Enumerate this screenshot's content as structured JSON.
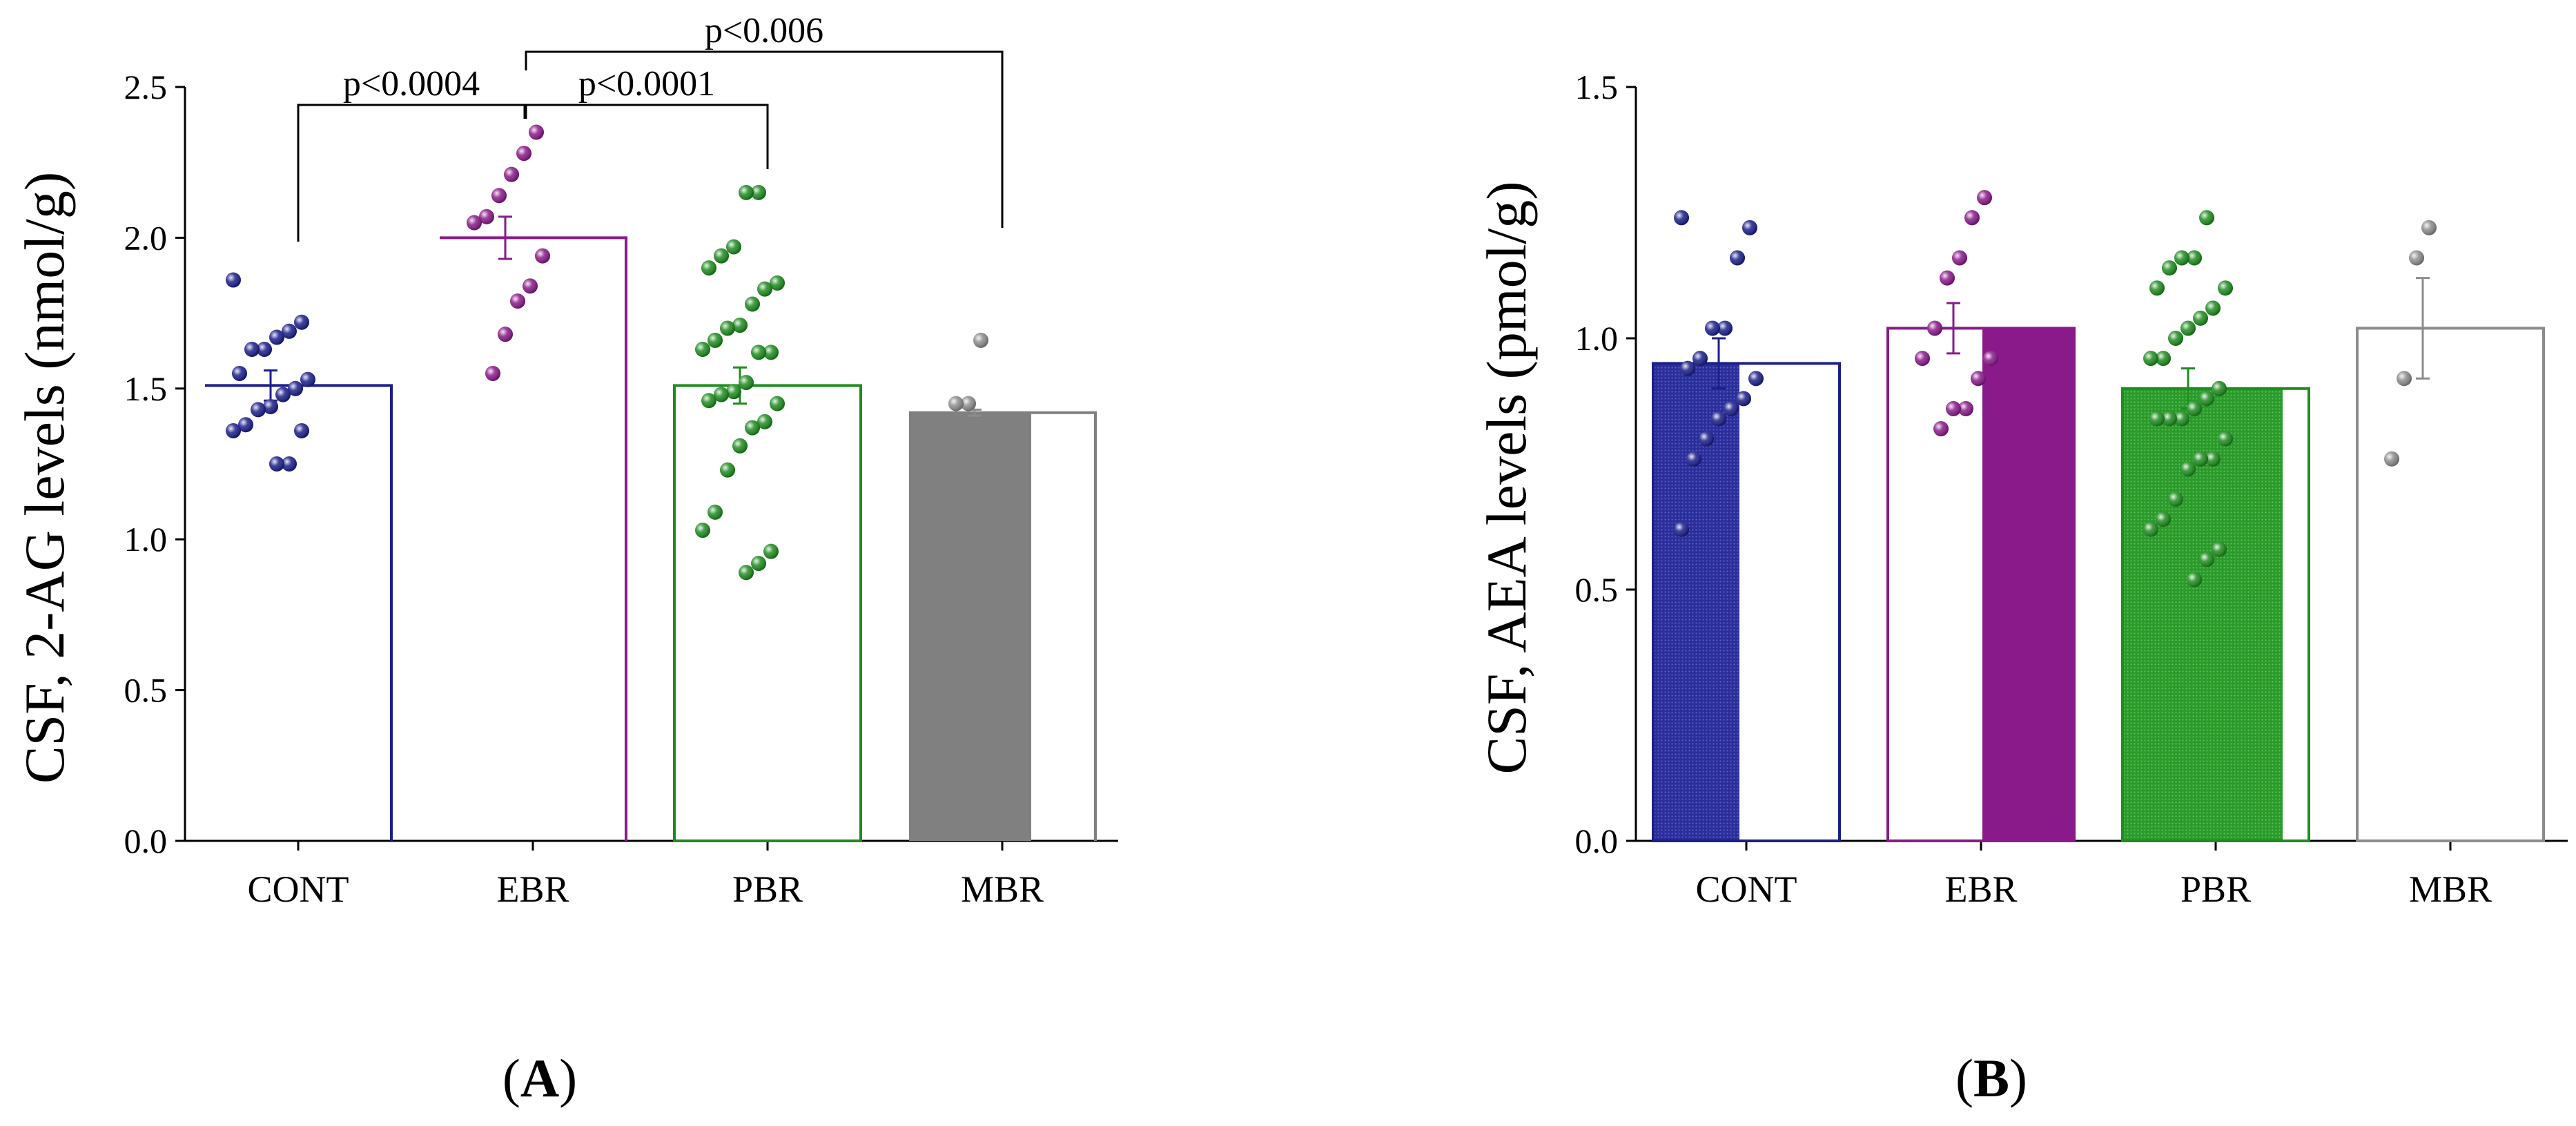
{
  "chart_data": [
    {
      "type": "bar",
      "panel_label": "A",
      "ylabel": "CSF, 2-AG levels (nmol/g)",
      "xlabel": "",
      "ylim": [
        0,
        2.5
      ],
      "yticks": [
        0.0,
        0.5,
        1.0,
        1.5,
        2.0,
        2.5
      ],
      "ytick_labels": [
        "0.0",
        "0.5",
        "1.0",
        "1.5",
        "2.0",
        "2.5"
      ],
      "categories": [
        "CONT",
        "EBR",
        "PBR",
        "MBR"
      ],
      "colors": [
        "#1b1f8a",
        "#8a1a8a",
        "#1e8c1e",
        "#8c8c8c"
      ],
      "values": [
        1.51,
        2.0,
        1.51,
        1.42
      ],
      "errors": [
        0.05,
        0.07,
        0.06,
        0.01
      ],
      "points": [
        [
          1.86,
          1.72,
          1.69,
          1.67,
          1.63,
          1.63,
          1.55,
          1.53,
          1.5,
          1.48,
          1.44,
          1.43,
          1.38,
          1.36,
          1.36,
          1.25,
          1.25
        ],
        [
          2.35,
          2.28,
          2.21,
          2.14,
          2.07,
          2.05,
          1.94,
          1.84,
          1.79,
          1.68,
          1.55
        ],
        [
          2.15,
          2.15,
          1.97,
          1.94,
          1.9,
          1.85,
          1.83,
          1.78,
          1.71,
          1.7,
          1.66,
          1.63,
          1.62,
          1.62,
          1.52,
          1.49,
          1.48,
          1.46,
          1.45,
          1.39,
          1.37,
          1.31,
          1.23,
          1.09,
          1.03,
          0.96,
          0.92,
          0.89
        ],
        [
          1.66,
          1.45,
          1.45
        ]
      ],
      "significance": [
        {
          "from": "CONT",
          "to": "EBR",
          "label": "p<0.0004"
        },
        {
          "from": "EBR",
          "to": "PBR",
          "label": "p<0.0001"
        },
        {
          "from": "EBR",
          "to": "MBR",
          "label": "p<0.006"
        }
      ]
    },
    {
      "type": "bar",
      "panel_label": "B",
      "ylabel": "CSF, AEA levels (pmol/g)",
      "xlabel": "",
      "ylim": [
        0,
        1.5
      ],
      "yticks": [
        0.0,
        0.5,
        1.0,
        1.5
      ],
      "ytick_labels": [
        "0.0",
        "0.5",
        "1.0",
        "1.5"
      ],
      "categories": [
        "CONT",
        "EBR",
        "PBR",
        "MBR"
      ],
      "colors": [
        "#1b1f8a",
        "#8a1a8a",
        "#1e8c1e",
        "#8c8c8c"
      ],
      "values": [
        0.95,
        1.02,
        0.9,
        1.02
      ],
      "errors": [
        0.05,
        0.05,
        0.04,
        0.1
      ],
      "points": [
        [
          1.24,
          1.22,
          1.16,
          1.02,
          1.02,
          0.96,
          0.94,
          0.92,
          0.88,
          0.86,
          0.84,
          0.8,
          0.76,
          0.62
        ],
        [
          1.28,
          1.24,
          1.16,
          1.12,
          1.02,
          0.96,
          0.96,
          0.92,
          0.86,
          0.86,
          0.82
        ],
        [
          1.24,
          1.16,
          1.16,
          1.14,
          1.1,
          1.1,
          1.06,
          1.04,
          1.02,
          1.0,
          0.96,
          0.96,
          0.9,
          0.88,
          0.86,
          0.84,
          0.84,
          0.84,
          0.8,
          0.76,
          0.76,
          0.74,
          0.68,
          0.64,
          0.62,
          0.58,
          0.56,
          0.52
        ],
        [
          1.22,
          1.16,
          0.92,
          0.76
        ]
      ]
    }
  ]
}
